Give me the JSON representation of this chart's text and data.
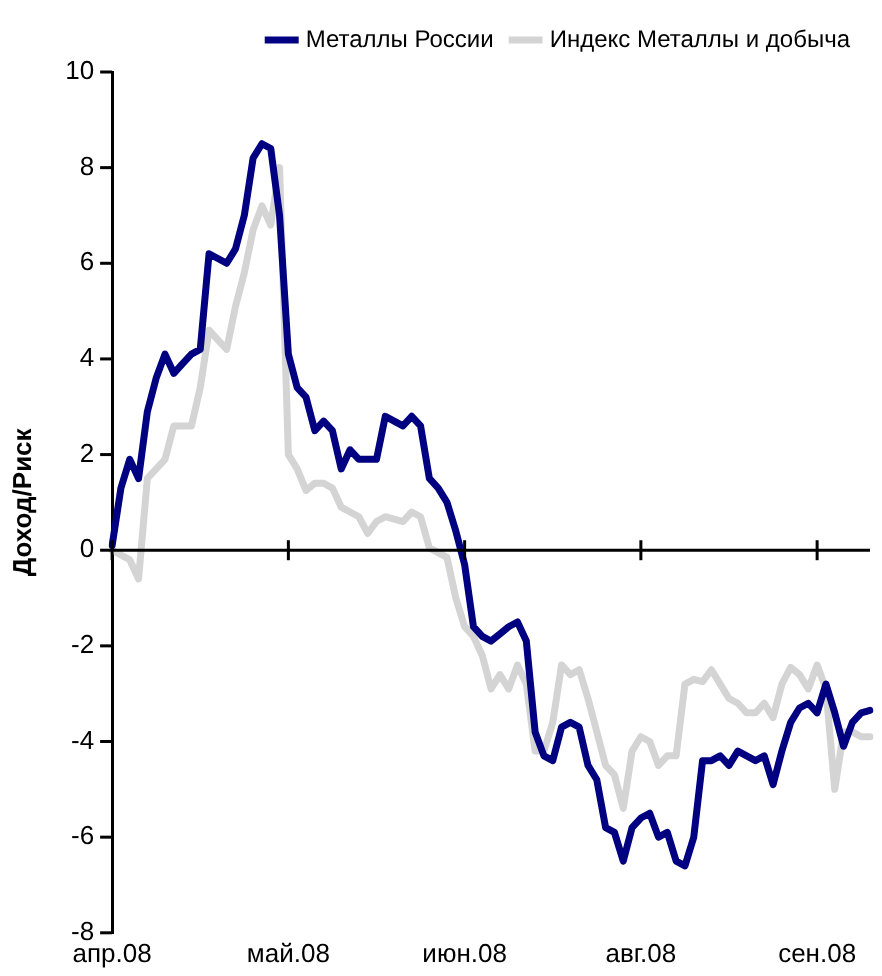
{
  "chart_data": {
    "type": "line",
    "ylabel": "Доход/Риск",
    "legend": "top right",
    "grid": false,
    "marker": "none",
    "line_style": "solid",
    "categories": [
      "апр.08",
      null,
      null,
      null,
      null,
      null,
      null,
      null,
      null,
      null,
      null,
      null,
      null,
      null,
      null,
      null,
      null,
      null,
      null,
      null,
      "май.08",
      null,
      null,
      null,
      null,
      null,
      null,
      null,
      null,
      null,
      null,
      null,
      null,
      null,
      null,
      null,
      null,
      null,
      null,
      null,
      "июн.08",
      null,
      null,
      null,
      null,
      null,
      null,
      null,
      null,
      null,
      null,
      null,
      null,
      null,
      null,
      null,
      null,
      null,
      null,
      null,
      "авг.08",
      null,
      null,
      null,
      null,
      null,
      null,
      null,
      null,
      null,
      null,
      null,
      null,
      null,
      null,
      null,
      null,
      null,
      null,
      null,
      "сен.08",
      null,
      null,
      null,
      null,
      null,
      null
    ],
    "ref_lines": [
      {
        "axis": "y",
        "value": 0,
        "color": "#000000"
      }
    ],
    "ylim": [
      -8,
      10
    ],
    "yticks": [
      -8,
      -6,
      -4,
      -2,
      0,
      2,
      4,
      6,
      8,
      10
    ],
    "series": [
      {
        "name": "Металлы России",
        "color": "#000080",
        "values": [
          0.1,
          1.3,
          1.9,
          1.5,
          2.9,
          3.6,
          4.1,
          3.7,
          3.9,
          4.1,
          4.2,
          6.2,
          6.1,
          6.0,
          6.3,
          7.0,
          8.2,
          8.5,
          8.4,
          7.0,
          4.1,
          3.4,
          3.2,
          2.5,
          2.7,
          2.5,
          1.7,
          2.1,
          1.9,
          1.9,
          1.9,
          2.8,
          2.7,
          2.6,
          2.8,
          2.6,
          1.5,
          1.3,
          1.0,
          0.4,
          -0.3,
          -1.6,
          -1.8,
          -1.9,
          -1.75,
          -1.6,
          -1.5,
          -1.9,
          -3.8,
          -4.3,
          -4.4,
          -3.7,
          -3.6,
          -3.7,
          -4.5,
          -4.8,
          -5.8,
          -5.9,
          -6.5,
          -5.8,
          -5.6,
          -5.5,
          -6.0,
          -5.9,
          -6.5,
          -6.6,
          -6.0,
          -4.4,
          -4.4,
          -4.3,
          -4.5,
          -4.2,
          -4.3,
          -4.4,
          -4.3,
          -4.9,
          -4.2,
          -3.6,
          -3.3,
          -3.2,
          -3.4,
          -2.8,
          -3.4,
          -4.1,
          -3.6,
          -3.4,
          -3.35
        ]
      },
      {
        "name": "Индекс Металлы и добыча",
        "color": "#d4d4d4",
        "values": [
          0,
          -0.1,
          -0.2,
          -0.6,
          1.5,
          1.7,
          1.9,
          2.6,
          2.6,
          2.6,
          3.4,
          4.6,
          4.4,
          4.2,
          5.1,
          5.8,
          6.7,
          7.2,
          6.8,
          8.0,
          2.0,
          1.7,
          1.25,
          1.4,
          1.4,
          1.3,
          0.9,
          0.8,
          0.7,
          0.35,
          0.6,
          0.7,
          0.65,
          0.6,
          0.8,
          0.7,
          0.05,
          -0.05,
          -0.15,
          -1.0,
          -1.6,
          -1.8,
          -2.2,
          -2.9,
          -2.6,
          -2.9,
          -2.4,
          -2.8,
          -4.2,
          -4.2,
          -3.6,
          -2.4,
          -2.6,
          -2.5,
          -3.1,
          -3.8,
          -4.5,
          -4.7,
          -5.4,
          -4.2,
          -3.9,
          -4.0,
          -4.5,
          -4.3,
          -4.3,
          -2.8,
          -2.7,
          -2.75,
          -2.5,
          -2.8,
          -3.1,
          -3.2,
          -3.4,
          -3.4,
          -3.2,
          -3.5,
          -2.8,
          -2.45,
          -2.6,
          -2.9,
          -2.4,
          -2.9,
          -5.0,
          -3.8,
          -3.8,
          -3.9,
          -3.9
        ]
      }
    ]
  }
}
